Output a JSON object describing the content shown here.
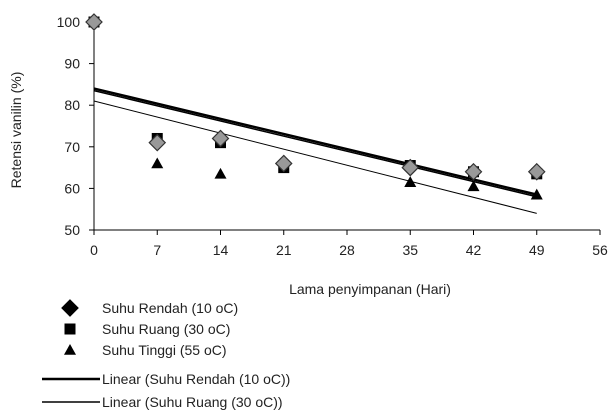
{
  "chart_data": {
    "type": "scatter",
    "xlabel": "Lama penyimpanan (Hari)",
    "ylabel": "Retensi vanilin (%)",
    "xlim": [
      0,
      56
    ],
    "ylim": [
      50,
      100
    ],
    "xticks": [
      0,
      7,
      14,
      21,
      28,
      35,
      42,
      49,
      56
    ],
    "yticks": [
      50,
      60,
      70,
      80,
      90,
      100
    ],
    "grid": false,
    "legend_position": "bottom-left",
    "series": [
      {
        "name": "Suhu Rendah (10 oC)",
        "marker": "diamond",
        "color": "#999999",
        "outline": "#333333",
        "x": [
          0,
          7,
          14,
          21,
          35,
          42,
          49
        ],
        "y": [
          100,
          71,
          72,
          66,
          65,
          64,
          64
        ]
      },
      {
        "name": "Suhu Ruang (30 oC)",
        "marker": "square",
        "color": "#000000",
        "x": [
          0,
          7,
          14,
          21,
          35,
          42,
          49
        ],
        "y": [
          100,
          72,
          71,
          65,
          65.5,
          64,
          63.5
        ]
      },
      {
        "name": "Suhu Tinggi (55 oC)",
        "marker": "triangle",
        "color": "#000000",
        "x": [
          7,
          14,
          35,
          42,
          49
        ],
        "y": [
          66,
          63.5,
          61.5,
          60.5,
          58.5
        ]
      }
    ],
    "trendlines": [
      {
        "name": "Linear (Suhu Rendah (10 oC))",
        "x": [
          0,
          49
        ],
        "y": [
          84,
          58.5
        ],
        "stroke_width": 2.5,
        "color": "#000000"
      },
      {
        "name": "Linear (Suhu Ruang (30 oC))",
        "x": [
          0,
          49
        ],
        "y": [
          83.5,
          58
        ],
        "stroke_width": 1.5,
        "color": "#000000"
      },
      {
        "x": [
          0,
          49
        ],
        "y": [
          81,
          54
        ],
        "stroke_width": 1,
        "color": "#000000"
      }
    ]
  }
}
